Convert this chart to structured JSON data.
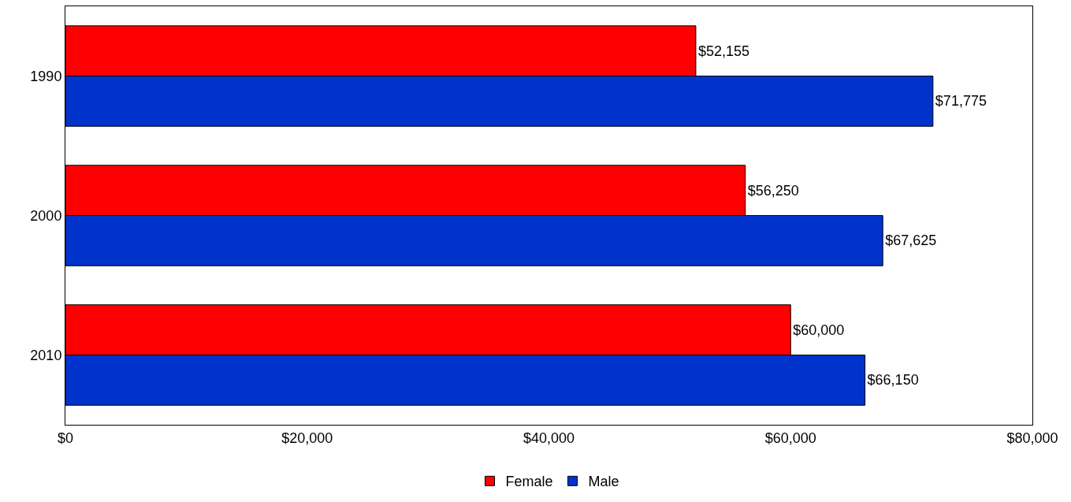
{
  "chart_data": {
    "type": "bar",
    "orientation": "horizontal",
    "categories": [
      "1990",
      "2000",
      "2010"
    ],
    "series": [
      {
        "name": "Female",
        "color": "#ff0000",
        "values": [
          52155,
          56250,
          60000
        ],
        "value_labels": [
          "$52,155",
          "$56,250",
          "$60,000"
        ]
      },
      {
        "name": "Male",
        "color": "#0033cc",
        "values": [
          71775,
          67625,
          66150
        ],
        "value_labels": [
          "$71,775",
          "$67,625",
          "$66,150"
        ]
      }
    ],
    "xlim": [
      0,
      80000
    ],
    "xticks": [
      {
        "value": 0,
        "label": "$0"
      },
      {
        "value": 20000,
        "label": "$20,000"
      },
      {
        "value": 40000,
        "label": "$40,000"
      },
      {
        "value": 60000,
        "label": "$60,000"
      },
      {
        "value": 80000,
        "label": "$80,000"
      }
    ],
    "grid": false,
    "legend": "bottom"
  }
}
